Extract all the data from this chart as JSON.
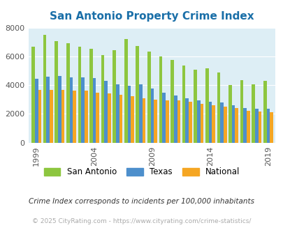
{
  "title": "San Antonio Property Crime Index",
  "subtitle": "Crime Index corresponds to incidents per 100,000 inhabitants",
  "copyright": "© 2025 CityRating.com - https://www.cityrating.com/crime-statistics/",
  "san_antonio_vals": [
    6650,
    7480,
    7080,
    6900,
    6650,
    6550,
    6100,
    6450,
    7200,
    6700,
    6350,
    6000,
    5750,
    5380,
    5050,
    5180,
    4900,
    4000,
    4350,
    4050,
    4300
  ],
  "texas_vals": [
    4420,
    4600,
    4620,
    4550,
    4540,
    4480,
    4300,
    4060,
    3980,
    4040,
    3740,
    3490,
    3300,
    3070,
    2960,
    2850,
    2780,
    2590,
    2400,
    2350,
    2380
  ],
  "national_vals": [
    3650,
    3680,
    3680,
    3620,
    3600,
    3480,
    3440,
    3340,
    3250,
    3060,
    2970,
    2940,
    2940,
    2860,
    2720,
    2620,
    2490,
    2400,
    2200,
    2150,
    2100
  ],
  "plot_years": [
    1999,
    2000,
    2001,
    2002,
    2003,
    2004,
    2005,
    2006,
    2007,
    2008,
    2009,
    2010,
    2011,
    2012,
    2013,
    2014,
    2015,
    2016,
    2017,
    2018,
    2019
  ],
  "color_sa": "#8dc63f",
  "color_tx": "#4d8fcc",
  "color_nat": "#f5a623",
  "bg_color": "#ddeef5",
  "title_color": "#1a6fa8",
  "subtitle_color": "#333333",
  "copyright_color": "#aaaaaa",
  "ylim": [
    0,
    8000
  ],
  "yticks": [
    0,
    2000,
    4000,
    6000,
    8000
  ],
  "xtick_years": [
    1999,
    2004,
    2009,
    2014,
    2019
  ]
}
